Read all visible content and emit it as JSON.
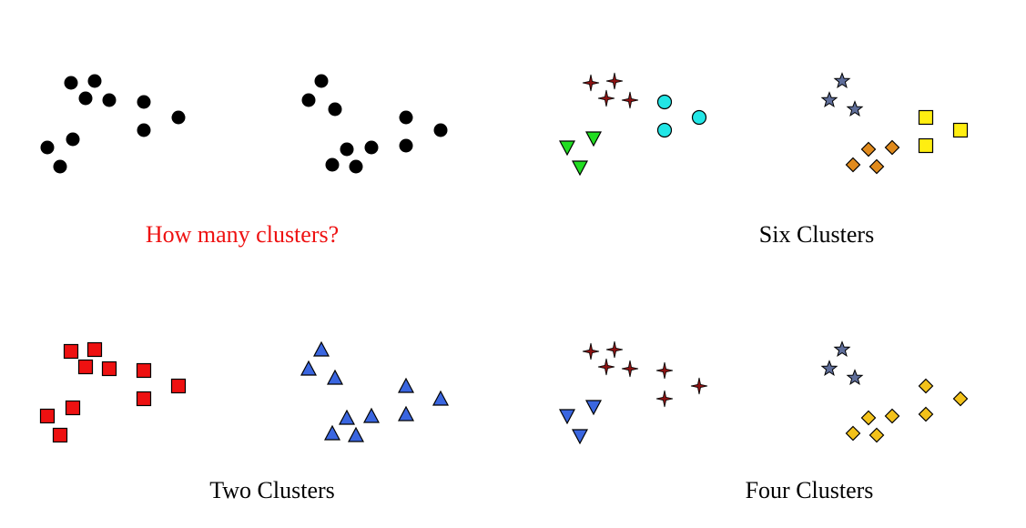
{
  "colors": {
    "black": "#000000",
    "red": "#ee1111",
    "blue": "#3a66e0",
    "green": "#22dd22",
    "cyan": "#22e6e6",
    "darkred": "#8b1212",
    "slate": "#5f6e9a",
    "orange": "#e08a1c",
    "yellow": "#ffee11",
    "gold": "#f3c21a",
    "question_text": "#ee1111",
    "caption_text": "#000000"
  },
  "panels": [
    {
      "id": "how-many",
      "caption": "How many clusters?",
      "caption_color": "question_text",
      "groups": [
        {
          "shape": "circle",
          "color": "black",
          "points": [
            [
              78,
              91
            ],
            [
              104,
              89
            ],
            [
              94,
              108
            ],
            [
              120,
              110
            ],
            [
              158,
              112
            ],
            [
              158,
              143
            ],
            [
              196,
              129
            ],
            [
              52,
              162
            ],
            [
              80,
              153
            ],
            [
              66,
              183
            ],
            [
              353,
              89
            ],
            [
              339,
              110
            ],
            [
              368,
              120
            ],
            [
              446,
              129
            ],
            [
              484,
              143
            ],
            [
              446,
              160
            ],
            [
              381,
              164
            ],
            [
              408,
              162
            ],
            [
              365,
              181
            ],
            [
              391,
              183
            ]
          ]
        }
      ]
    },
    {
      "id": "six-clusters",
      "caption": "Six Clusters",
      "caption_color": "caption_text",
      "groups": [
        {
          "shape": "sparkle",
          "color": "darkred",
          "points": [
            [
              649,
              91
            ],
            [
              675,
              89
            ],
            [
              666,
              108
            ],
            [
              692,
              110
            ]
          ]
        },
        {
          "shape": "circle-outline",
          "color": "cyan",
          "points": [
            [
              730,
              112
            ],
            [
              730,
              143
            ],
            [
              768,
              129
            ]
          ]
        },
        {
          "shape": "triangle-down",
          "color": "green",
          "points": [
            [
              623,
              162
            ],
            [
              652,
              152
            ],
            [
              637,
              184
            ]
          ]
        },
        {
          "shape": "star",
          "color": "slate",
          "points": [
            [
              925,
              89
            ],
            [
              911,
              110
            ],
            [
              939,
              120
            ]
          ]
        },
        {
          "shape": "square",
          "color": "yellow",
          "points": [
            [
              1017,
              129
            ],
            [
              1055,
              143
            ],
            [
              1017,
              160
            ]
          ]
        },
        {
          "shape": "diamond",
          "color": "orange",
          "points": [
            [
              954,
              164
            ],
            [
              980,
              162
            ],
            [
              937,
              181
            ],
            [
              963,
              183
            ]
          ]
        }
      ]
    },
    {
      "id": "two-clusters",
      "caption": "Two Clusters",
      "caption_color": "caption_text",
      "groups": [
        {
          "shape": "square",
          "color": "red",
          "points": [
            [
              78,
              386
            ],
            [
              104,
              384
            ],
            [
              94,
              403
            ],
            [
              120,
              405
            ],
            [
              158,
              407
            ],
            [
              158,
              438
            ],
            [
              196,
              424
            ],
            [
              52,
              457
            ],
            [
              80,
              448
            ],
            [
              66,
              478
            ]
          ]
        },
        {
          "shape": "triangle-up",
          "color": "blue",
          "points": [
            [
              353,
              384
            ],
            [
              339,
              405
            ],
            [
              368,
              415
            ],
            [
              446,
              424
            ],
            [
              484,
              438
            ],
            [
              446,
              455
            ],
            [
              381,
              459
            ],
            [
              408,
              457
            ],
            [
              365,
              476
            ],
            [
              391,
              478
            ]
          ]
        }
      ]
    },
    {
      "id": "four-clusters",
      "caption": "Four Clusters",
      "caption_color": "caption_text",
      "groups": [
        {
          "shape": "sparkle",
          "color": "darkred",
          "points": [
            [
              649,
              386
            ],
            [
              675,
              384
            ],
            [
              666,
              403
            ],
            [
              692,
              405
            ],
            [
              730,
              407
            ],
            [
              730,
              438
            ],
            [
              768,
              424
            ]
          ]
        },
        {
          "shape": "triangle-down",
          "color": "blue",
          "points": [
            [
              623,
              457
            ],
            [
              652,
              447
            ],
            [
              637,
              479
            ]
          ]
        },
        {
          "shape": "star",
          "color": "slate",
          "points": [
            [
              925,
              384
            ],
            [
              911,
              405
            ],
            [
              939,
              415
            ]
          ]
        },
        {
          "shape": "diamond",
          "color": "gold",
          "points": [
            [
              1017,
              424
            ],
            [
              1055,
              438
            ],
            [
              1017,
              455
            ],
            [
              954,
              459
            ],
            [
              980,
              457
            ],
            [
              937,
              476
            ],
            [
              963,
              478
            ]
          ]
        }
      ]
    }
  ]
}
